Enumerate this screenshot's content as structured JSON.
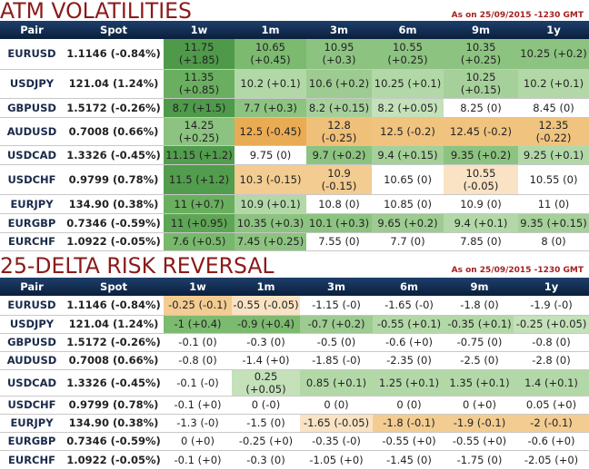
{
  "atm": {
    "title": "ATM VOLATILITIES",
    "as_of": "As on 25/09/2015 -1230 GMT",
    "columns": [
      "Pair",
      "Spot",
      "1w",
      "1m",
      "3m",
      "6m",
      "9m",
      "1y"
    ],
    "rows": [
      {
        "pair": "EURUSD",
        "spot": "1.1146 (-0.84%)",
        "cells": [
          {
            "v": "11.75\n(+1.85)",
            "c": "#4e9a4a"
          },
          {
            "v": "10.65\n(+0.45)",
            "c": "#7cba70"
          },
          {
            "v": "10.95\n(+0.3)",
            "c": "#8cc380"
          },
          {
            "v": "10.55\n(+0.25)",
            "c": "#8cc380"
          },
          {
            "v": "10.35\n(+0.25)",
            "c": "#8cc380"
          },
          {
            "v": "10.25 (+0.2)",
            "c": "#8cc380"
          }
        ]
      },
      {
        "pair": "USDJPY",
        "spot": "121.04 (1.24%)",
        "cells": [
          {
            "v": "11.35\n(+0.85)",
            "c": "#6aaf5f"
          },
          {
            "v": "10.2 (+0.1)",
            "c": "#b3d8a8"
          },
          {
            "v": "10.6 (+0.2)",
            "c": "#9dcb91"
          },
          {
            "v": "10.25 (+0.1)",
            "c": "#b3d8a8"
          },
          {
            "v": "10.25\n(+0.15)",
            "c": "#a6d09a"
          },
          {
            "v": "10.2 (+0.1)",
            "c": "#b3d8a8"
          }
        ]
      },
      {
        "pair": "GBPUSD",
        "spot": "1.5172 (-0.26%)",
        "cells": [
          {
            "v": "8.7 (+1.5)",
            "c": "#4e9a4a"
          },
          {
            "v": "7.7 (+0.3)",
            "c": "#8cc380"
          },
          {
            "v": "8.2 (+0.15)",
            "c": "#a6d09a"
          },
          {
            "v": "8.2 (+0.05)",
            "c": "#c4e1ba"
          },
          {
            "v": "8.25 (0)",
            "c": "#ffffff"
          },
          {
            "v": "8.45 (0)",
            "c": "#ffffff"
          }
        ]
      },
      {
        "pair": "AUDUSD",
        "spot": "0.7008 (0.66%)",
        "cells": [
          {
            "v": "14.25\n(+0.25)",
            "c": "#8cc380"
          },
          {
            "v": "12.5 (-0.45)",
            "c": "#e9ac55"
          },
          {
            "v": "12.8\n(-0.25)",
            "c": "#efc07a"
          },
          {
            "v": "12.5 (-0.2)",
            "c": "#f0c37f"
          },
          {
            "v": "12.45 (-0.2)",
            "c": "#f0c37f"
          },
          {
            "v": "12.35\n(-0.22)",
            "c": "#f0c37f"
          }
        ]
      },
      {
        "pair": "USDCAD",
        "spot": "1.3326 (-0.45%)",
        "cells": [
          {
            "v": "11.15 (+1.2)",
            "c": "#529d4d"
          },
          {
            "v": "9.75 (0)",
            "c": "#ffffff"
          },
          {
            "v": "9.7 (+0.2)",
            "c": "#8cc380"
          },
          {
            "v": "9.4 (+0.15)",
            "c": "#a6d09a"
          },
          {
            "v": "9.35 (+0.2)",
            "c": "#8cc380"
          },
          {
            "v": "9.25 (+0.1)",
            "c": "#b3d8a8"
          }
        ]
      },
      {
        "pair": "USDCHF",
        "spot": "0.9799 (0.78%)",
        "cells": [
          {
            "v": "11.5 (+1.2)",
            "c": "#529d4d"
          },
          {
            "v": "10.3 (-0.15)",
            "c": "#f3cc92"
          },
          {
            "v": "10.9\n(-0.15)",
            "c": "#f3cc92"
          },
          {
            "v": "10.65 (0)",
            "c": "#ffffff"
          },
          {
            "v": "10.55\n(-0.05)",
            "c": "#f9e3c4"
          },
          {
            "v": "10.55 (0)",
            "c": "#ffffff"
          }
        ]
      },
      {
        "pair": "EURJPY",
        "spot": "134.90 (0.38%)",
        "cells": [
          {
            "v": "11 (+0.7)",
            "c": "#6aaf5f"
          },
          {
            "v": "10.9 (+0.1)",
            "c": "#b3d8a8"
          },
          {
            "v": "10.8 (0)",
            "c": "#ffffff"
          },
          {
            "v": "10.85 (0)",
            "c": "#ffffff"
          },
          {
            "v": "10.9 (0)",
            "c": "#ffffff"
          },
          {
            "v": "11 (0)",
            "c": "#ffffff"
          }
        ]
      },
      {
        "pair": "EURGBP",
        "spot": "0.7346 (-0.59%)",
        "cells": [
          {
            "v": "11 (+0.95)",
            "c": "#5ea656"
          },
          {
            "v": "10.35 (+0.3)",
            "c": "#8cc380"
          },
          {
            "v": "10.1 (+0.3)",
            "c": "#8cc380"
          },
          {
            "v": "9.65 (+0.2)",
            "c": "#9dcb91"
          },
          {
            "v": "9.4 (+0.1)",
            "c": "#b3d8a8"
          },
          {
            "v": "9.35 (+0.15)",
            "c": "#a6d09a"
          }
        ]
      },
      {
        "pair": "EURCHF",
        "spot": "1.0922 (-0.05%)",
        "cells": [
          {
            "v": "7.6 (+0.5)",
            "c": "#78b86c"
          },
          {
            "v": "7.45 (+0.25)",
            "c": "#8cc380"
          },
          {
            "v": "7.55 (0)",
            "c": "#ffffff"
          },
          {
            "v": "7.7 (0)",
            "c": "#ffffff"
          },
          {
            "v": "7.85 (0)",
            "c": "#ffffff"
          },
          {
            "v": "8 (0)",
            "c": "#ffffff"
          }
        ]
      }
    ]
  },
  "rr": {
    "title": "25-DELTA RISK REVERSAL",
    "as_of": "As on 25/09/2015 -1230 GMT",
    "columns": [
      "Pair",
      "Spot",
      "1w",
      "1m",
      "3m",
      "6m",
      "9m",
      "1y"
    ],
    "rows": [
      {
        "pair": "EURUSD",
        "spot": "1.1146 (-0.84%)",
        "cells": [
          {
            "v": "-0.25 (-0.1)",
            "c": "#f3cc92"
          },
          {
            "v": "-0.55 (-0.05)",
            "c": "#f9e3c4"
          },
          {
            "v": "-1.15 (-0)",
            "c": "#ffffff"
          },
          {
            "v": "-1.65 (-0)",
            "c": "#ffffff"
          },
          {
            "v": "-1.8 (0)",
            "c": "#ffffff"
          },
          {
            "v": "-1.9 (-0)",
            "c": "#ffffff"
          }
        ]
      },
      {
        "pair": "USDJPY",
        "spot": "121.04 (1.24%)",
        "cells": [
          {
            "v": "-1 (+0.4)",
            "c": "#7cba70"
          },
          {
            "v": "-0.9 (+0.4)",
            "c": "#7cba70"
          },
          {
            "v": "-0.7 (+0.2)",
            "c": "#9dcb91"
          },
          {
            "v": "-0.55 (+0.1)",
            "c": "#b3d8a8"
          },
          {
            "v": "-0.35 (+0.1)",
            "c": "#b3d8a8"
          },
          {
            "v": "-0.25 (+0.05)",
            "c": "#c4e1ba"
          }
        ]
      },
      {
        "pair": "GBPUSD",
        "spot": "1.5172 (-0.26%)",
        "cells": [
          {
            "v": "-0.1 (0)",
            "c": "#ffffff"
          },
          {
            "v": "-0.3 (0)",
            "c": "#ffffff"
          },
          {
            "v": "-0.5 (0)",
            "c": "#ffffff"
          },
          {
            "v": "-0.6 (+0)",
            "c": "#ffffff"
          },
          {
            "v": "-0.75 (0)",
            "c": "#ffffff"
          },
          {
            "v": "-0.8 (0)",
            "c": "#ffffff"
          }
        ]
      },
      {
        "pair": "AUDUSD",
        "spot": "0.7008 (0.66%)",
        "cells": [
          {
            "v": "-0.8 (0)",
            "c": "#ffffff"
          },
          {
            "v": "-1.4 (+0)",
            "c": "#ffffff"
          },
          {
            "v": "-1.85 (-0)",
            "c": "#ffffff"
          },
          {
            "v": "-2.35 (0)",
            "c": "#ffffff"
          },
          {
            "v": "-2.5 (0)",
            "c": "#ffffff"
          },
          {
            "v": "-2.8 (0)",
            "c": "#ffffff"
          }
        ]
      },
      {
        "pair": "USDCAD",
        "spot": "1.3326 (-0.45%)",
        "cells": [
          {
            "v": "-0.1 (-0)",
            "c": "#ffffff"
          },
          {
            "v": "0.25 (+0.05)",
            "c": "#c4e1ba"
          },
          {
            "v": "0.85 (+0.1)",
            "c": "#b3d8a8"
          },
          {
            "v": "1.25 (+0.1)",
            "c": "#b3d8a8"
          },
          {
            "v": "1.35 (+0.1)",
            "c": "#b3d8a8"
          },
          {
            "v": "1.4 (+0.1)",
            "c": "#b3d8a8"
          }
        ]
      },
      {
        "pair": "USDCHF",
        "spot": "0.9799 (0.78%)",
        "cells": [
          {
            "v": "-0.1 (+0)",
            "c": "#ffffff"
          },
          {
            "v": "0 (-0)",
            "c": "#ffffff"
          },
          {
            "v": "0 (0)",
            "c": "#ffffff"
          },
          {
            "v": "0 (0)",
            "c": "#ffffff"
          },
          {
            "v": "0 (+0)",
            "c": "#ffffff"
          },
          {
            "v": "0.05 (+0)",
            "c": "#ffffff"
          }
        ]
      },
      {
        "pair": "EURJPY",
        "spot": "134.90 (0.38%)",
        "cells": [
          {
            "v": "-1.3 (-0)",
            "c": "#ffffff"
          },
          {
            "v": "-1.5 (0)",
            "c": "#ffffff"
          },
          {
            "v": "-1.65 (-0.05)",
            "c": "#f9e3c4"
          },
          {
            "v": "-1.8 (-0.1)",
            "c": "#f3cc92"
          },
          {
            "v": "-1.9 (-0.1)",
            "c": "#f3cc92"
          },
          {
            "v": "-2 (-0.1)",
            "c": "#f3cc92"
          }
        ]
      },
      {
        "pair": "EURGBP",
        "spot": "0.7346 (-0.59%)",
        "cells": [
          {
            "v": "0 (+0)",
            "c": "#ffffff"
          },
          {
            "v": "-0.25 (+0)",
            "c": "#ffffff"
          },
          {
            "v": "-0.35 (-0)",
            "c": "#ffffff"
          },
          {
            "v": "-0.55 (+0)",
            "c": "#ffffff"
          },
          {
            "v": "-0.55 (+0)",
            "c": "#ffffff"
          },
          {
            "v": "-0.6 (+0)",
            "c": "#ffffff"
          }
        ]
      },
      {
        "pair": "EURCHF",
        "spot": "1.0922 (-0.05%)",
        "cells": [
          {
            "v": "-0.1 (+0)",
            "c": "#ffffff"
          },
          {
            "v": "-0.3 (0)",
            "c": "#ffffff"
          },
          {
            "v": "-1.05 (+0)",
            "c": "#ffffff"
          },
          {
            "v": "-1.45 (0)",
            "c": "#ffffff"
          },
          {
            "v": "-1.75 (0)",
            "c": "#ffffff"
          },
          {
            "v": "-2.05 (+0)",
            "c": "#ffffff"
          }
        ]
      }
    ]
  }
}
